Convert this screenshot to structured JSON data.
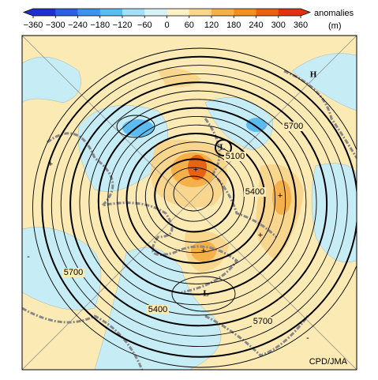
{
  "colorbar": {
    "ticks": [
      "−360",
      "−300",
      "−240",
      "−180",
      "−120",
      "−60",
      "0",
      "60",
      "120",
      "180",
      "240",
      "300",
      "360"
    ],
    "colors": [
      "#1f2fd0",
      "#2d5fe2",
      "#3d92ec",
      "#5cbcf2",
      "#a3dff5",
      "#d6f1f8",
      "#fbf0c6",
      "#f8d68e",
      "#f5b04a",
      "#f08f22",
      "#e86212",
      "#de3210"
    ],
    "title": "anomalies",
    "unit": "(m)"
  },
  "map": {
    "contour_labels": [
      "5700",
      "5700",
      "5700",
      "5400",
      "5400",
      "5100"
    ],
    "high_labels": [
      "H"
    ],
    "low_labels": [
      "L",
      "L"
    ],
    "credit": "CPD/JMA"
  }
}
